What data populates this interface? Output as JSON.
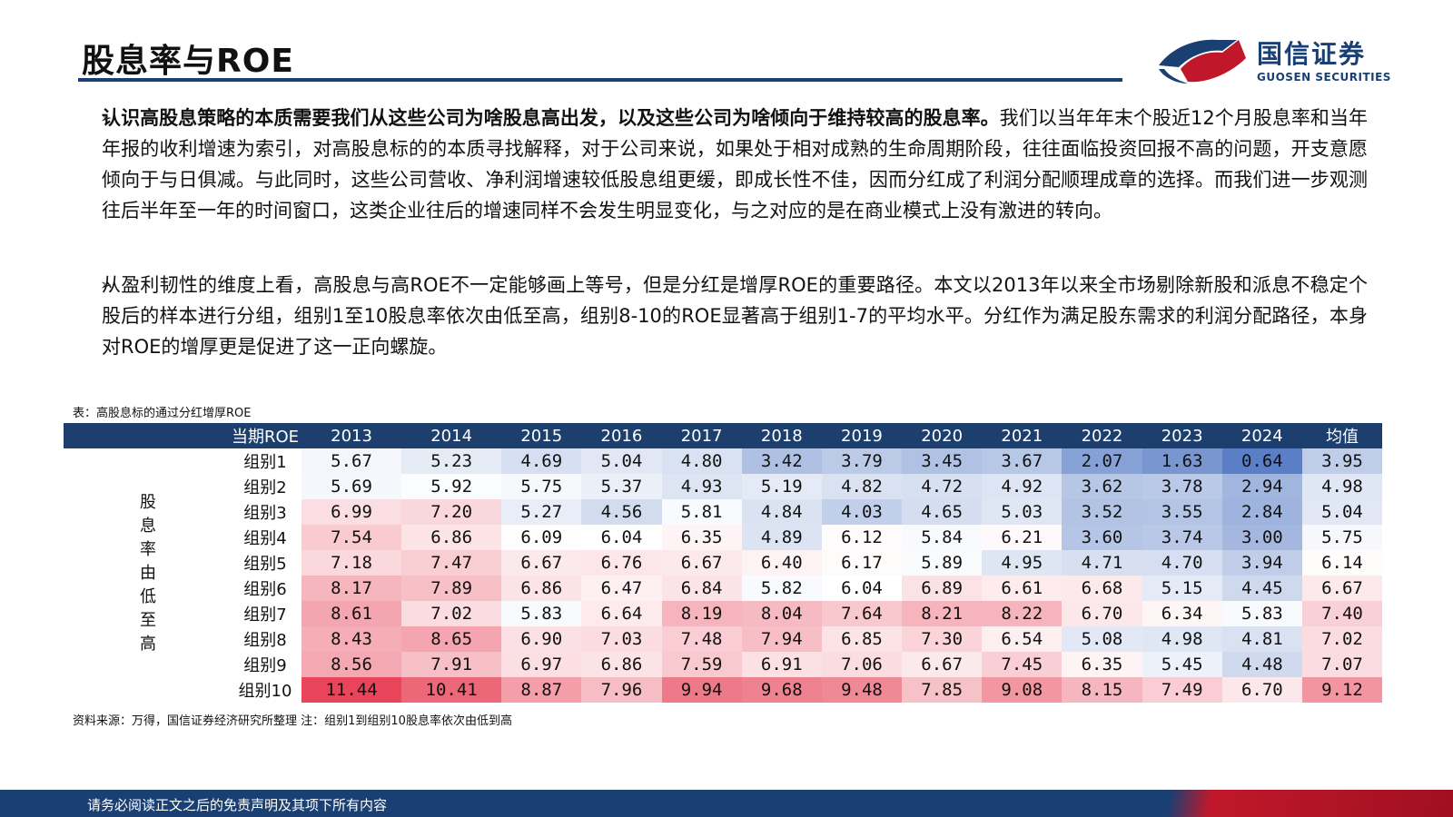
{
  "header": {
    "title": "股息率与ROE",
    "logo_cn": "国信证券",
    "logo_en": "GUOSEN SECURITIES",
    "colors": {
      "brand_blue": "#1a3f73",
      "brand_red": "#c0182a"
    }
  },
  "paragraphs": [
    {
      "bold": "认识高股息策略的本质需要我们从这些公司为啥股息高出发，以及这些公司为啥倾向于维持较高的股息率。",
      "rest": "我们以当年年末个股近12个月股息率和当年年报的收利增速为索引，对高股息标的的本质寻找解释，对于公司来说，如果处于相对成熟的生命周期阶段，往往面临投资回报不高的问题，开支意愿倾向于与日俱减。与此同时，这些公司营收、净利润增速较低股息组更缓，即成长性不佳，因而分红成了利润分配顺理成章的选择。而我们进一步观测往后半年至一年的时间窗口，这类企业往后的增速同样不会发生明显变化，与之对应的是在商业模式上没有激进的转向。"
    },
    {
      "bold": "",
      "rest": "从盈利韧性的维度上看，高股息与高ROE不一定能够画上等号，但是分红是增厚ROE的重要路径。本文以2013年以来全市场剔除新股和派息不稳定个股后的样本进行分组，组别1至10股息率依次由低至高，组别8-10的ROE显著高于组别1-7的平均水平。分红作为满足股东需求的利润分配路径，本身对ROE的增厚更是促进了这一正向螺旋。"
    }
  ],
  "bullet_symbol": "➢",
  "table": {
    "caption": "表：高股息标的通过分红增厚ROE",
    "corner_label": "当期ROE",
    "side_label": "股息率由低至高",
    "columns": [
      "2013",
      "2014",
      "2015",
      "2016",
      "2017",
      "2018",
      "2019",
      "2020",
      "2021",
      "2022",
      "2023",
      "2024",
      "均值"
    ],
    "rows": [
      {
        "label": "组别1",
        "values": [
          "5.67",
          "5.23",
          "4.69",
          "5.04",
          "4.80",
          "3.42",
          "3.79",
          "3.45",
          "3.67",
          "2.07",
          "1.63",
          "0.64",
          "3.95"
        ]
      },
      {
        "label": "组别2",
        "values": [
          "5.69",
          "5.92",
          "5.75",
          "5.37",
          "4.93",
          "5.19",
          "4.82",
          "4.72",
          "4.92",
          "3.62",
          "3.78",
          "2.94",
          "4.98"
        ]
      },
      {
        "label": "组别3",
        "values": [
          "6.99",
          "7.20",
          "5.27",
          "4.56",
          "5.81",
          "4.84",
          "4.03",
          "4.65",
          "5.03",
          "3.52",
          "3.55",
          "2.84",
          "5.04"
        ]
      },
      {
        "label": "组别4",
        "values": [
          "7.54",
          "6.86",
          "6.09",
          "6.04",
          "6.35",
          "4.89",
          "6.12",
          "5.84",
          "6.21",
          "3.60",
          "3.74",
          "3.00",
          "5.75"
        ]
      },
      {
        "label": "组别5",
        "values": [
          "7.18",
          "7.47",
          "6.67",
          "6.76",
          "6.67",
          "6.40",
          "6.17",
          "5.89",
          "4.95",
          "4.71",
          "4.70",
          "3.94",
          "6.14"
        ]
      },
      {
        "label": "组别6",
        "values": [
          "8.17",
          "7.89",
          "6.86",
          "6.47",
          "6.84",
          "5.82",
          "6.04",
          "6.89",
          "6.61",
          "6.68",
          "5.15",
          "4.45",
          "6.67"
        ]
      },
      {
        "label": "组别7",
        "values": [
          "8.61",
          "7.02",
          "5.83",
          "6.64",
          "8.19",
          "8.04",
          "7.64",
          "8.21",
          "8.22",
          "6.70",
          "6.34",
          "5.83",
          "7.40"
        ]
      },
      {
        "label": "组别8",
        "values": [
          "8.43",
          "8.65",
          "6.90",
          "7.03",
          "7.48",
          "7.94",
          "6.85",
          "7.30",
          "6.54",
          "5.08",
          "4.98",
          "4.81",
          "7.02"
        ]
      },
      {
        "label": "组别9",
        "values": [
          "8.56",
          "7.91",
          "6.97",
          "6.86",
          "7.59",
          "6.91",
          "7.06",
          "6.67",
          "7.45",
          "6.35",
          "5.45",
          "4.48",
          "7.07"
        ]
      },
      {
        "label": "组别10",
        "values": [
          "11.44",
          "10.41",
          "8.87",
          "7.96",
          "9.94",
          "9.68",
          "9.48",
          "7.85",
          "9.08",
          "8.15",
          "7.49",
          "6.70",
          "9.12"
        ]
      }
    ],
    "source": "资料来源：万得，国信证券经济研究所整理 注：组别1到组别10股息率依次由低到高",
    "colors": {
      "low": "#5b7fc6",
      "mid": "#ffffff",
      "high": "#e8455a",
      "header_bg": "#1c3f6e"
    }
  },
  "footer": {
    "text": "请务必阅读正文之后的免责声明及其项下所有内容"
  }
}
